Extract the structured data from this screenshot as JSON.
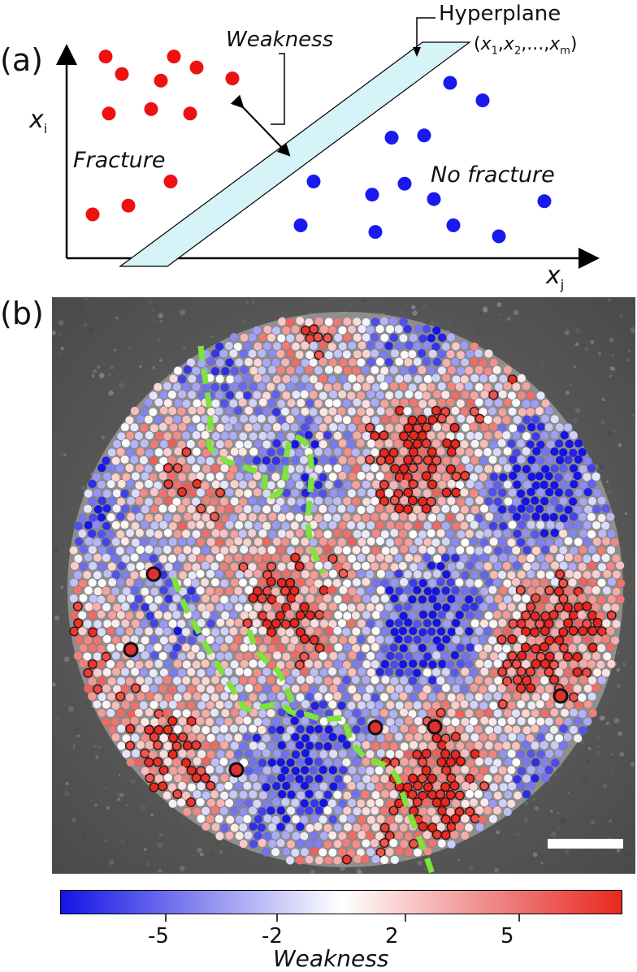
{
  "panel_a": {
    "label": "(a)",
    "hyperplane_label": "Hyperplane",
    "hyperplane_coords": {
      "prefix": "(",
      "v1": "x",
      "s1": "1",
      "sep1": ",",
      "v2": "x",
      "s2": "2",
      "sep2": ",...,",
      "v3": "x",
      "s3": "m",
      "suffix": ")"
    },
    "weakness_label": "Weakness",
    "fracture_label": "Fracture",
    "no_fracture_label": "No fracture",
    "x_axis": {
      "var": "x",
      "sub": "j"
    },
    "y_axis": {
      "var": "x",
      "sub": "i"
    },
    "colors": {
      "fracture": "#ee1111",
      "no_fracture": "#1a1aee",
      "hyperplane_fill": "#d6f3f7"
    }
  },
  "panel_b": {
    "label": "(b)",
    "colorbar": {
      "title": "Weakness",
      "ticks": [
        "-5",
        "-2",
        "2",
        "5"
      ],
      "colors": [
        "#1414e6",
        "#ffffff",
        "#e8281e"
      ]
    },
    "path_color": "#7ee33a"
  },
  "chart_data": {
    "type": "scatter",
    "title": "",
    "xlabel": "x_j",
    "ylabel": "x_i",
    "series": [
      {
        "name": "Fracture",
        "points": [
          [
            1.2,
            9.2
          ],
          [
            3.3,
            9.2
          ],
          [
            1.7,
            8.4
          ],
          [
            2.9,
            8.1
          ],
          [
            4.0,
            8.7
          ],
          [
            5.1,
            8.2
          ],
          [
            1.3,
            6.6
          ],
          [
            2.6,
            6.8
          ],
          [
            3.8,
            6.6
          ],
          [
            3.2,
            3.5
          ],
          [
            0.8,
            2.0
          ],
          [
            1.9,
            2.4
          ]
        ]
      },
      {
        "name": "No fracture",
        "points": [
          [
            11.8,
            8.0
          ],
          [
            12.8,
            7.2
          ],
          [
            10.0,
            5.5
          ],
          [
            11.0,
            5.6
          ],
          [
            7.6,
            3.5
          ],
          [
            9.4,
            2.9
          ],
          [
            10.4,
            3.4
          ],
          [
            11.3,
            2.7
          ],
          [
            7.2,
            1.5
          ],
          [
            9.5,
            1.2
          ],
          [
            11.9,
            1.5
          ],
          [
            13.3,
            1.0
          ],
          [
            14.7,
            2.6
          ]
        ]
      }
    ]
  }
}
